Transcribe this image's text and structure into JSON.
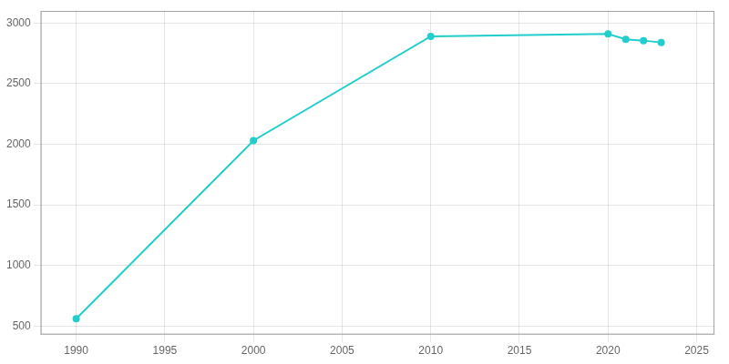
{
  "chart_data": {
    "type": "line",
    "x": [
      1990,
      2000,
      2010,
      2020,
      2021,
      2022,
      2023
    ],
    "values": [
      560,
      2030,
      2890,
      2910,
      2865,
      2855,
      2840
    ],
    "color": "#22CDCD",
    "marker": "o",
    "xlim": [
      1988,
      2026
    ],
    "ylim": [
      430,
      3100
    ],
    "xticks": [
      1990,
      1995,
      2000,
      2005,
      2010,
      2015,
      2020,
      2025
    ],
    "yticks": [
      500,
      1000,
      1500,
      2000,
      2500,
      3000
    ],
    "grid": true
  }
}
